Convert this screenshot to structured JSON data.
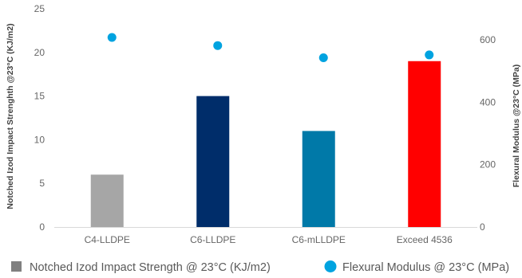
{
  "chart_data": {
    "type": "bar",
    "categories": [
      "C4-LLDPE",
      "C6-LLDPE",
      "C6-mLLDPE",
      "Exceed 4536"
    ],
    "series": [
      {
        "name": "Notched Izod Impact Strength @ 23°C  (KJ/m2)",
        "type": "bar",
        "axis": "left",
        "values": [
          6,
          15,
          11,
          19
        ],
        "colors": [
          "#A6A6A6",
          "#002D6A",
          "#0079A8",
          "#FF0000"
        ]
      },
      {
        "name": "Flexural Modulus @ 23°C  (MPa)",
        "type": "scatter",
        "axis": "right",
        "values": [
          608,
          582,
          543,
          552
        ],
        "color": "#00A3E0"
      }
    ],
    "ylabel_left": "Notched Izod Impact Strenghth @23°C (KJ/m2)",
    "ylabel_right": "Flexural Modulus @23°C (MPa)",
    "ylim_left": [
      0,
      25
    ],
    "yticks_left": [
      "0",
      "5",
      "10",
      "15",
      "20",
      "25"
    ],
    "ylim_right": [
      0,
      700
    ],
    "yticks_right": [
      "0",
      "200",
      "400",
      "600"
    ],
    "grid": false,
    "legend_position": "bottom",
    "legend_marker_colors": [
      "#808080",
      "#00A3E0"
    ]
  }
}
